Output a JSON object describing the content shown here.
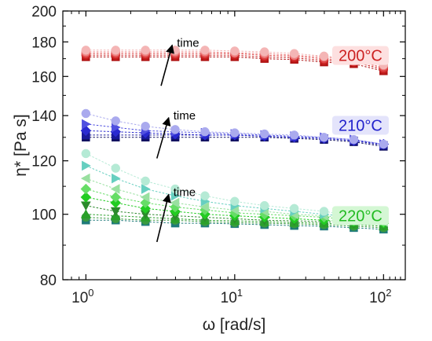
{
  "chart_data": {
    "type": "scatter",
    "xlabel": "ω [rad/s]",
    "ylabel": "η* [Pa s]",
    "xscale": "log",
    "yscale": "log",
    "xlim": [
      0.7,
      140
    ],
    "ylim": [
      80,
      200
    ],
    "x_ticks": [
      {
        "base": "10",
        "exp": "0"
      },
      {
        "base": "10",
        "exp": "1"
      },
      {
        "base": "10",
        "exp": "2"
      }
    ],
    "y_ticks": [
      "80",
      "100",
      "120",
      "140",
      "160",
      "180",
      "200"
    ],
    "x": [
      1.0,
      1.585,
      2.512,
      3.981,
      6.31,
      10.0,
      15.85,
      25.12,
      39.81,
      63.1,
      100.0
    ],
    "annotations": [
      {
        "text": "time",
        "arrow_from": [
          3.2,
          155
        ],
        "arrow_to": [
          3.8,
          178
        ]
      },
      {
        "text": "time",
        "arrow_from": [
          3.0,
          121
        ],
        "arrow_to": [
          3.6,
          139
        ]
      },
      {
        "text": "time",
        "arrow_from": [
          3.0,
          91
        ],
        "arrow_to": [
          3.6,
          107
        ]
      }
    ],
    "groups": [
      {
        "label": "200°C",
        "label_color": "#cc2222",
        "label_bg": "#fde0e0",
        "label_pos": [
          70,
          170
        ],
        "series": [
          {
            "color": "#b01515",
            "marker": "square",
            "values": [
              171,
              171,
              171,
              171,
              171,
              171,
              170,
              169.5,
              168,
              167,
              163
            ]
          },
          {
            "color": "#c82020",
            "marker": "circle",
            "values": [
              172,
              172,
              172,
              172,
              172,
              172,
              171,
              170.5,
              169,
              168,
              164
            ]
          },
          {
            "color": "#dd4444",
            "marker": "circle",
            "values": [
              173,
              173,
              173,
              173,
              173,
              173,
              172,
              171.5,
              170,
              168.5,
              165
            ]
          },
          {
            "color": "#ee8080",
            "marker": "circle",
            "values": [
              174,
              174,
              174,
              174,
              174,
              173.5,
              173,
              172,
              171,
              169.5,
              166
            ]
          },
          {
            "color": "#f4b5b5",
            "marker": "circle",
            "values": [
              175,
              175,
              175,
              175,
              175,
              174.5,
              174,
              173,
              171.5,
              170,
              166.5
            ]
          }
        ]
      },
      {
        "label": "210°C",
        "label_color": "#2222cc",
        "label_bg": "#e4e4fb",
        "label_pos": [
          70,
          134
        ],
        "series": [
          {
            "color": "#101060",
            "marker": "square",
            "values": [
              130,
              130,
              130,
              130,
              130,
              130,
              130,
              129.5,
              129,
              128,
              126
            ]
          },
          {
            "color": "#1a1a99",
            "marker": "square",
            "values": [
              131,
              131,
              131,
              131,
              131,
              131,
              130.5,
              130,
              129.5,
              128.5,
              126.5
            ]
          },
          {
            "color": "#2a2ad0",
            "marker": "diamond",
            "values": [
              133,
              132.5,
              132,
              131.5,
              131,
              131,
              130.5,
              130,
              129.5,
              128.5,
              127
            ]
          },
          {
            "color": "#5050e0",
            "marker": "triangle-right",
            "values": [
              136,
              134.5,
              133,
              132.5,
              132,
              131.5,
              131,
              130.5,
              130,
              129,
              127
            ]
          },
          {
            "color": "#aaaaee",
            "marker": "circle",
            "values": [
              141,
              137.5,
              135,
              133.5,
              132.5,
              132,
              131.5,
              131,
              130,
              129,
              127
            ]
          }
        ]
      },
      {
        "label": "220°C",
        "label_color": "#22bb22",
        "label_bg": "#d4f7d4",
        "label_pos": [
          70,
          98.5
        ],
        "series": [
          {
            "color": "#1f7a7a",
            "marker": "square",
            "values": [
              98,
              98,
              97.5,
              97,
              97,
              96.8,
              96.5,
              96.2,
              96,
              95.5,
              95
            ]
          },
          {
            "color": "#3a9a40",
            "marker": "circle",
            "values": [
              99,
              98.5,
              98,
              98,
              97.5,
              97.2,
              97,
              96.8,
              96.5,
              96,
              95.5
            ]
          },
          {
            "color": "#2aa02a",
            "marker": "triangle-up",
            "values": [
              100,
              99.5,
              99,
              98.5,
              98,
              97.8,
              97.5,
              97.2,
              97,
              96.5,
              96
            ]
          },
          {
            "color": "#2c8a2c",
            "marker": "triangle-down",
            "values": [
              103,
              101,
              100,
              99.5,
              99,
              98.5,
              98,
              97.8,
              97.5,
              97,
              96.5
            ]
          },
          {
            "color": "#22cc22",
            "marker": "diamond",
            "values": [
              106,
              104,
              102,
              101,
              100,
              99.5,
              99,
              98.5,
              98,
              97.5,
              97
            ]
          },
          {
            "color": "#66dd66",
            "marker": "diamond",
            "values": [
              109,
              106,
              104,
              102.5,
              101.5,
              100.5,
              100,
              99.5,
              99,
              98,
              97.5
            ]
          },
          {
            "color": "#99e0a0",
            "marker": "triangle-left",
            "values": [
              113,
              109,
              106,
              104,
              102.5,
              101.5,
              101,
              100,
              99.5,
              98.5,
              97.5
            ]
          },
          {
            "color": "#66cfc0",
            "marker": "triangle-right",
            "values": [
              118,
              113,
              109,
              106.5,
              104.5,
              103,
              102,
              101,
              100,
              99,
              98
            ]
          },
          {
            "color": "#b5ead5",
            "marker": "circle",
            "values": [
              123,
              117,
              112,
              109,
              106.5,
              104.5,
              103,
              102,
              101,
              99.5,
              98.5
            ]
          }
        ]
      }
    ]
  }
}
